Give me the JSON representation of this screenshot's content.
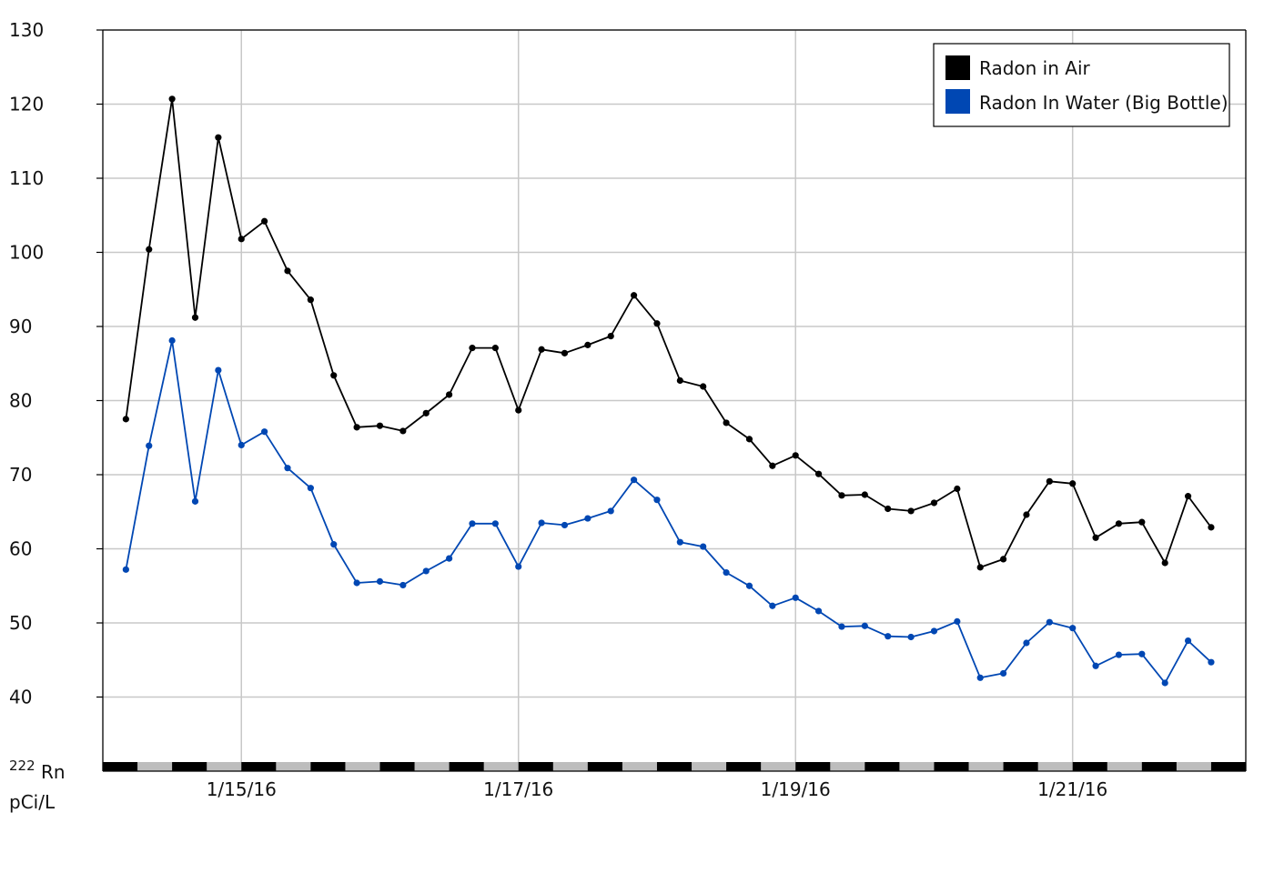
{
  "chart_data": {
    "type": "line",
    "title": "",
    "xlabel": "",
    "ylabel": {
      "isotope_mass": "222",
      "element": "Rn",
      "unit": "pCi/L"
    },
    "ylim": [
      30,
      130
    ],
    "y_ticks": [
      40,
      50,
      60,
      70,
      80,
      90,
      100,
      110,
      120,
      130
    ],
    "x_range": [
      "1/14/16 00:00",
      "1/22/16 06:00"
    ],
    "x_tick_labels": [
      "1/15/16",
      "1/17/16",
      "1/19/16",
      "1/21/16"
    ],
    "x_tick_dates": [
      "1/15/16",
      "1/17/16",
      "1/19/16",
      "1/21/16"
    ],
    "grid": true,
    "legend_position": "top-right",
    "day_night_bar": true,
    "time_step_hours": 4,
    "x": [
      "1/14/16 04:00",
      "1/14/16 08:00",
      "1/14/16 12:00",
      "1/14/16 16:00",
      "1/14/16 20:00",
      "1/15/16 00:00",
      "1/15/16 04:00",
      "1/15/16 08:00",
      "1/15/16 12:00",
      "1/15/16 16:00",
      "1/15/16 20:00",
      "1/16/16 00:00",
      "1/16/16 04:00",
      "1/16/16 08:00",
      "1/16/16 12:00",
      "1/16/16 16:00",
      "1/16/16 20:00",
      "1/17/16 00:00",
      "1/17/16 04:00",
      "1/17/16 08:00",
      "1/17/16 12:00",
      "1/17/16 16:00",
      "1/17/16 20:00",
      "1/18/16 00:00",
      "1/18/16 04:00",
      "1/18/16 08:00",
      "1/18/16 12:00",
      "1/18/16 16:00",
      "1/18/16 20:00",
      "1/19/16 00:00",
      "1/19/16 04:00",
      "1/19/16 08:00",
      "1/19/16 12:00",
      "1/19/16 16:00",
      "1/19/16 20:00",
      "1/20/16 00:00",
      "1/20/16 04:00",
      "1/20/16 08:00",
      "1/20/16 12:00",
      "1/20/16 16:00",
      "1/20/16 20:00",
      "1/21/16 00:00",
      "1/21/16 04:00",
      "1/21/16 08:00",
      "1/21/16 12:00",
      "1/21/16 16:00",
      "1/21/16 20:00",
      "1/22/16 00:00"
    ],
    "series": [
      {
        "name": "Radon in Air",
        "color": "#000000",
        "values": [
          77.5,
          100.4,
          120.7,
          91.2,
          115.5,
          101.8,
          104.2,
          97.5,
          93.6,
          83.4,
          76.4,
          76.6,
          75.9,
          78.3,
          80.8,
          87.1,
          87.1,
          78.7,
          86.9,
          86.4,
          87.5,
          88.7,
          94.2,
          90.4,
          82.7,
          81.9,
          77.0,
          74.8,
          71.2,
          72.6,
          70.1,
          67.2,
          67.3,
          65.4,
          65.1,
          66.2,
          68.1,
          57.5,
          58.6,
          64.6,
          69.1,
          68.8,
          61.5,
          63.4,
          63.6,
          58.1,
          67.1,
          62.9
        ]
      },
      {
        "name": "Radon In Water (Big Bottle)",
        "color": "#0047b3",
        "values": [
          57.2,
          73.9,
          88.1,
          66.4,
          84.1,
          74.0,
          75.8,
          70.9,
          68.2,
          60.6,
          55.4,
          55.6,
          55.1,
          57.0,
          58.7,
          63.4,
          63.4,
          57.6,
          63.5,
          63.2,
          64.1,
          65.1,
          69.3,
          66.6,
          60.9,
          60.3,
          56.8,
          55.0,
          52.3,
          53.4,
          51.6,
          49.5,
          49.6,
          48.2,
          48.1,
          48.9,
          50.2,
          42.6,
          43.2,
          47.3,
          50.1,
          49.3,
          44.2,
          45.7,
          45.8,
          41.9,
          47.6,
          44.7
        ]
      }
    ]
  }
}
